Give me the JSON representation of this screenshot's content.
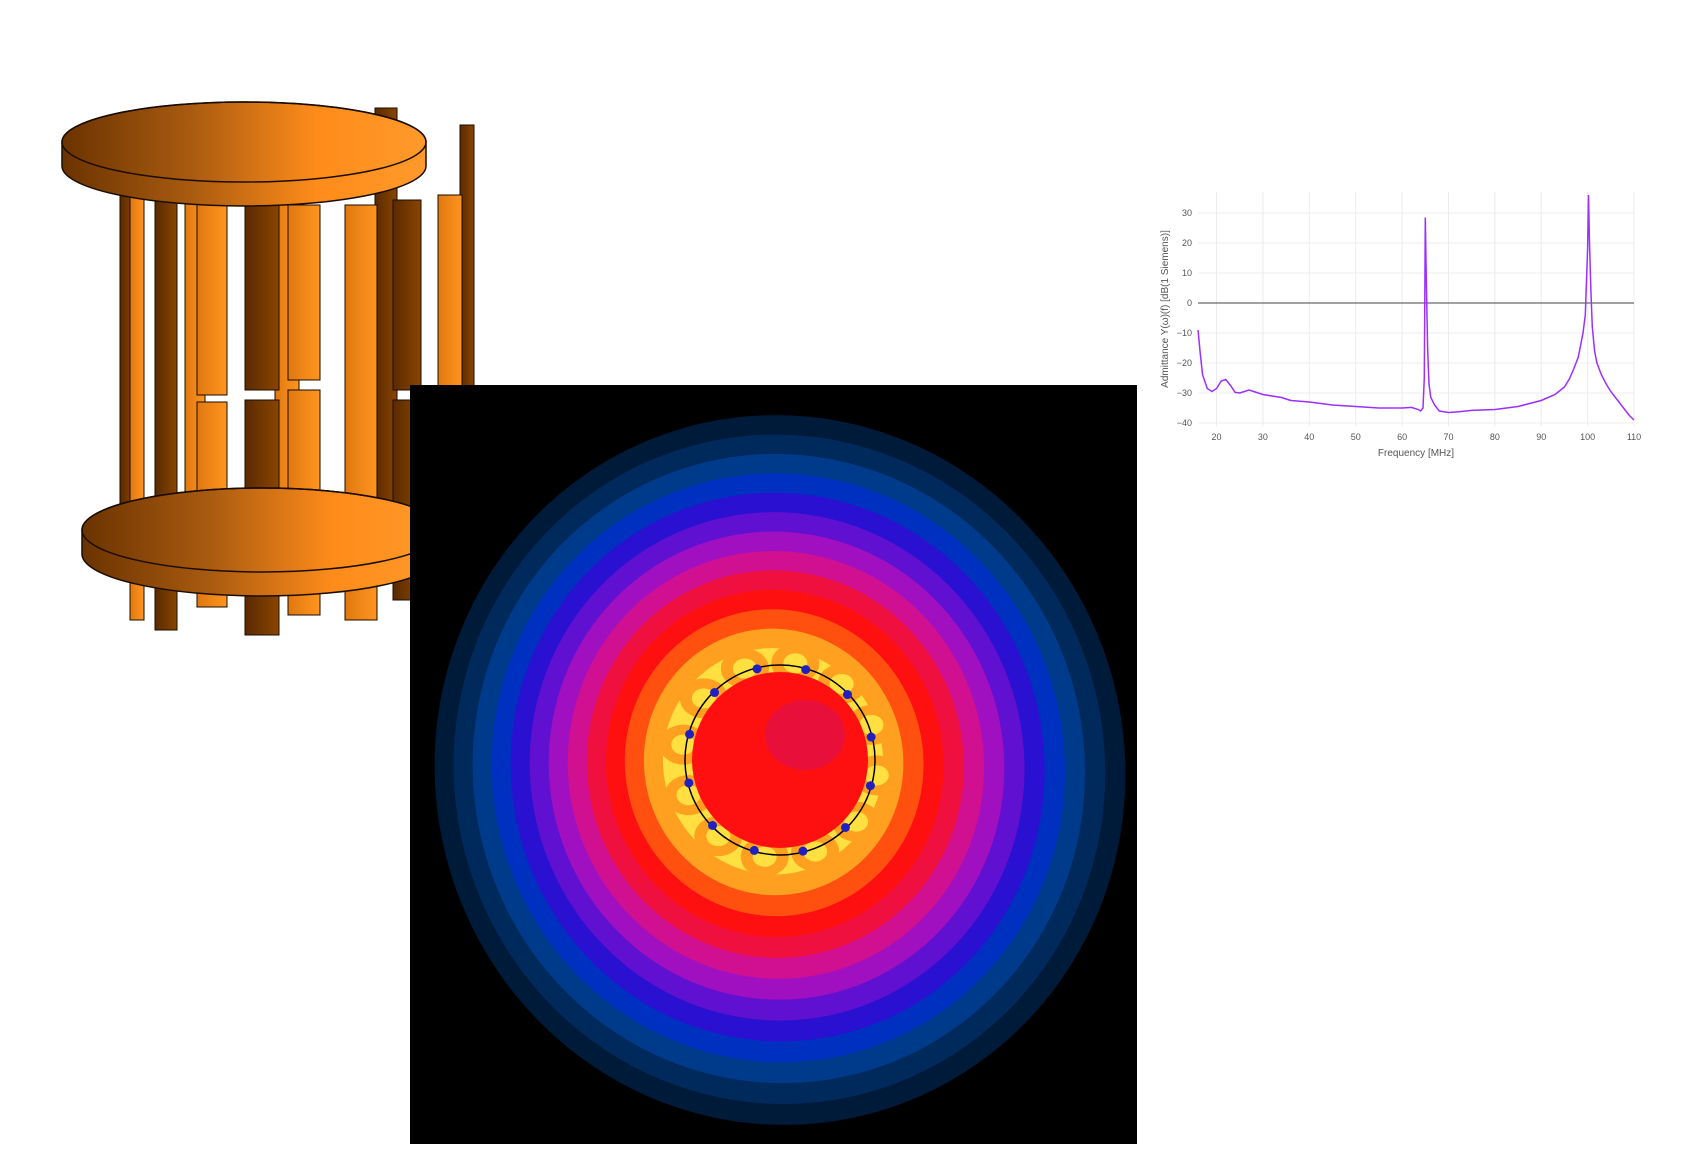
{
  "coil": {
    "render": "3d-birdcage-coil",
    "color_light": "#ff8c1a",
    "color_dark": "#6b3300",
    "outline": "#1a0d00"
  },
  "field_map": {
    "render": "field-magnitude-heatmap",
    "background": "#000000",
    "colors": [
      "#001a3a",
      "#002a5c",
      "#003a8a",
      "#0030c0",
      "#2a10d0",
      "#6010d0",
      "#a010c0",
      "#d01090",
      "#f01040",
      "#ff1010",
      "#ff5010",
      "#ffa020",
      "#ffe040"
    ],
    "coil_circle_color": "#000000",
    "rung_count": 12
  },
  "chart_data": {
    "type": "line",
    "xlabel": "Frequency [MHz]",
    "ylabel": "Admittance Y(ω)(f) [dB(1 Siemens)]",
    "xlim": [
      16,
      110
    ],
    "ylim": [
      -41,
      37
    ],
    "xticks": [
      20,
      30,
      40,
      50,
      60,
      70,
      80,
      90,
      100,
      110
    ],
    "yticks": [
      -40,
      -30,
      -20,
      -10,
      0,
      10,
      20,
      30
    ],
    "xtick_labels": [
      "20",
      "30",
      "40",
      "50",
      "60",
      "70",
      "80",
      "90",
      "100",
      "110"
    ],
    "ytick_labels": [
      "−40",
      "−30",
      "−20",
      "−10",
      "0",
      "10",
      "20",
      "30"
    ],
    "grid": true,
    "zero_line": true,
    "line_color": "#9b30ff",
    "series": [
      {
        "x": [
          16,
          16.5,
          17,
          18,
          19,
          20,
          21,
          22,
          23,
          24,
          25,
          26,
          27,
          28,
          30,
          32,
          34,
          36,
          40,
          45,
          50,
          55,
          60,
          62,
          63.5,
          64,
          64.5,
          64.8,
          65.0,
          65.2,
          65.5,
          65.8,
          66.2,
          67,
          68,
          70,
          72,
          75,
          80,
          85,
          90,
          93,
          95,
          96,
          97,
          98,
          99,
          99.5,
          100,
          100.2,
          100.4,
          100.7,
          101,
          101.5,
          102,
          103,
          104,
          105,
          106,
          107,
          108,
          109,
          110
        ],
        "y": [
          -9,
          -17,
          -24,
          -28.5,
          -29.5,
          -28.5,
          -26,
          -25.5,
          -27.5,
          -29.8,
          -30,
          -29.5,
          -29,
          -29.5,
          -30.5,
          -31,
          -31.5,
          -32.5,
          -33,
          -34,
          -34.5,
          -35,
          -35,
          -34.8,
          -35.5,
          -36,
          -35,
          -25,
          28.5,
          10,
          -15,
          -27,
          -31.5,
          -34,
          -36,
          -36.5,
          -36.3,
          -35.8,
          -35.5,
          -34.5,
          -32.5,
          -30.5,
          -28,
          -25.5,
          -22,
          -18,
          -10,
          -4,
          18,
          36,
          20,
          4,
          -8,
          -16,
          -20,
          -24,
          -27,
          -29.5,
          -31.5,
          -33.5,
          -35.5,
          -37.5,
          -39
        ]
      }
    ]
  }
}
